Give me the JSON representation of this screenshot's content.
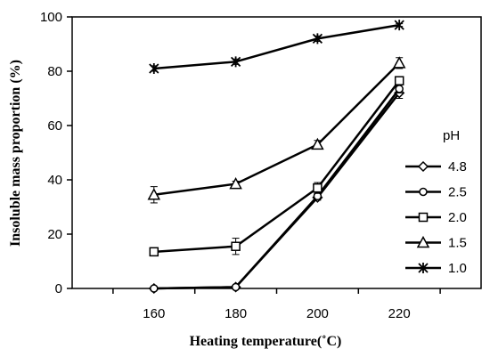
{
  "chart_data": {
    "type": "line",
    "title": "",
    "xlabel": "Heating temperature(˚C)",
    "ylabel": "Insoluble mass proportion (%)",
    "x": [
      160,
      180,
      200,
      220
    ],
    "x_tick_labels": [
      "160",
      "180",
      "200",
      "220"
    ],
    "xlim": [
      140,
      240
    ],
    "ylim": [
      0,
      100
    ],
    "y_tick_labels": [
      "0",
      "20",
      "40",
      "60",
      "80",
      "100"
    ],
    "y_ticks": [
      0,
      20,
      40,
      60,
      80,
      100
    ],
    "grid": false,
    "legend_title": "pH",
    "legend_position": "right",
    "series": [
      {
        "name": "4.8",
        "marker": "diamond",
        "values": [
          0,
          0.5,
          33.5,
          72
        ],
        "errors": [
          0,
          0.5,
          1,
          2
        ]
      },
      {
        "name": "2.5",
        "marker": "circle",
        "values": [
          0,
          0.5,
          34,
          73.5
        ],
        "errors": [
          0,
          0.5,
          1,
          1.5
        ]
      },
      {
        "name": "2.0",
        "marker": "square",
        "values": [
          13.5,
          15.5,
          37,
          76.5
        ],
        "errors": [
          1.5,
          3,
          2,
          1.5
        ]
      },
      {
        "name": "1.5",
        "marker": "triangle",
        "values": [
          34.5,
          38.5,
          53,
          83
        ],
        "errors": [
          3,
          1,
          1.5,
          2
        ]
      },
      {
        "name": "1.0",
        "marker": "star",
        "values": [
          81,
          83.5,
          92,
          97
        ],
        "errors": [
          1,
          1,
          1,
          0.5
        ]
      }
    ]
  }
}
